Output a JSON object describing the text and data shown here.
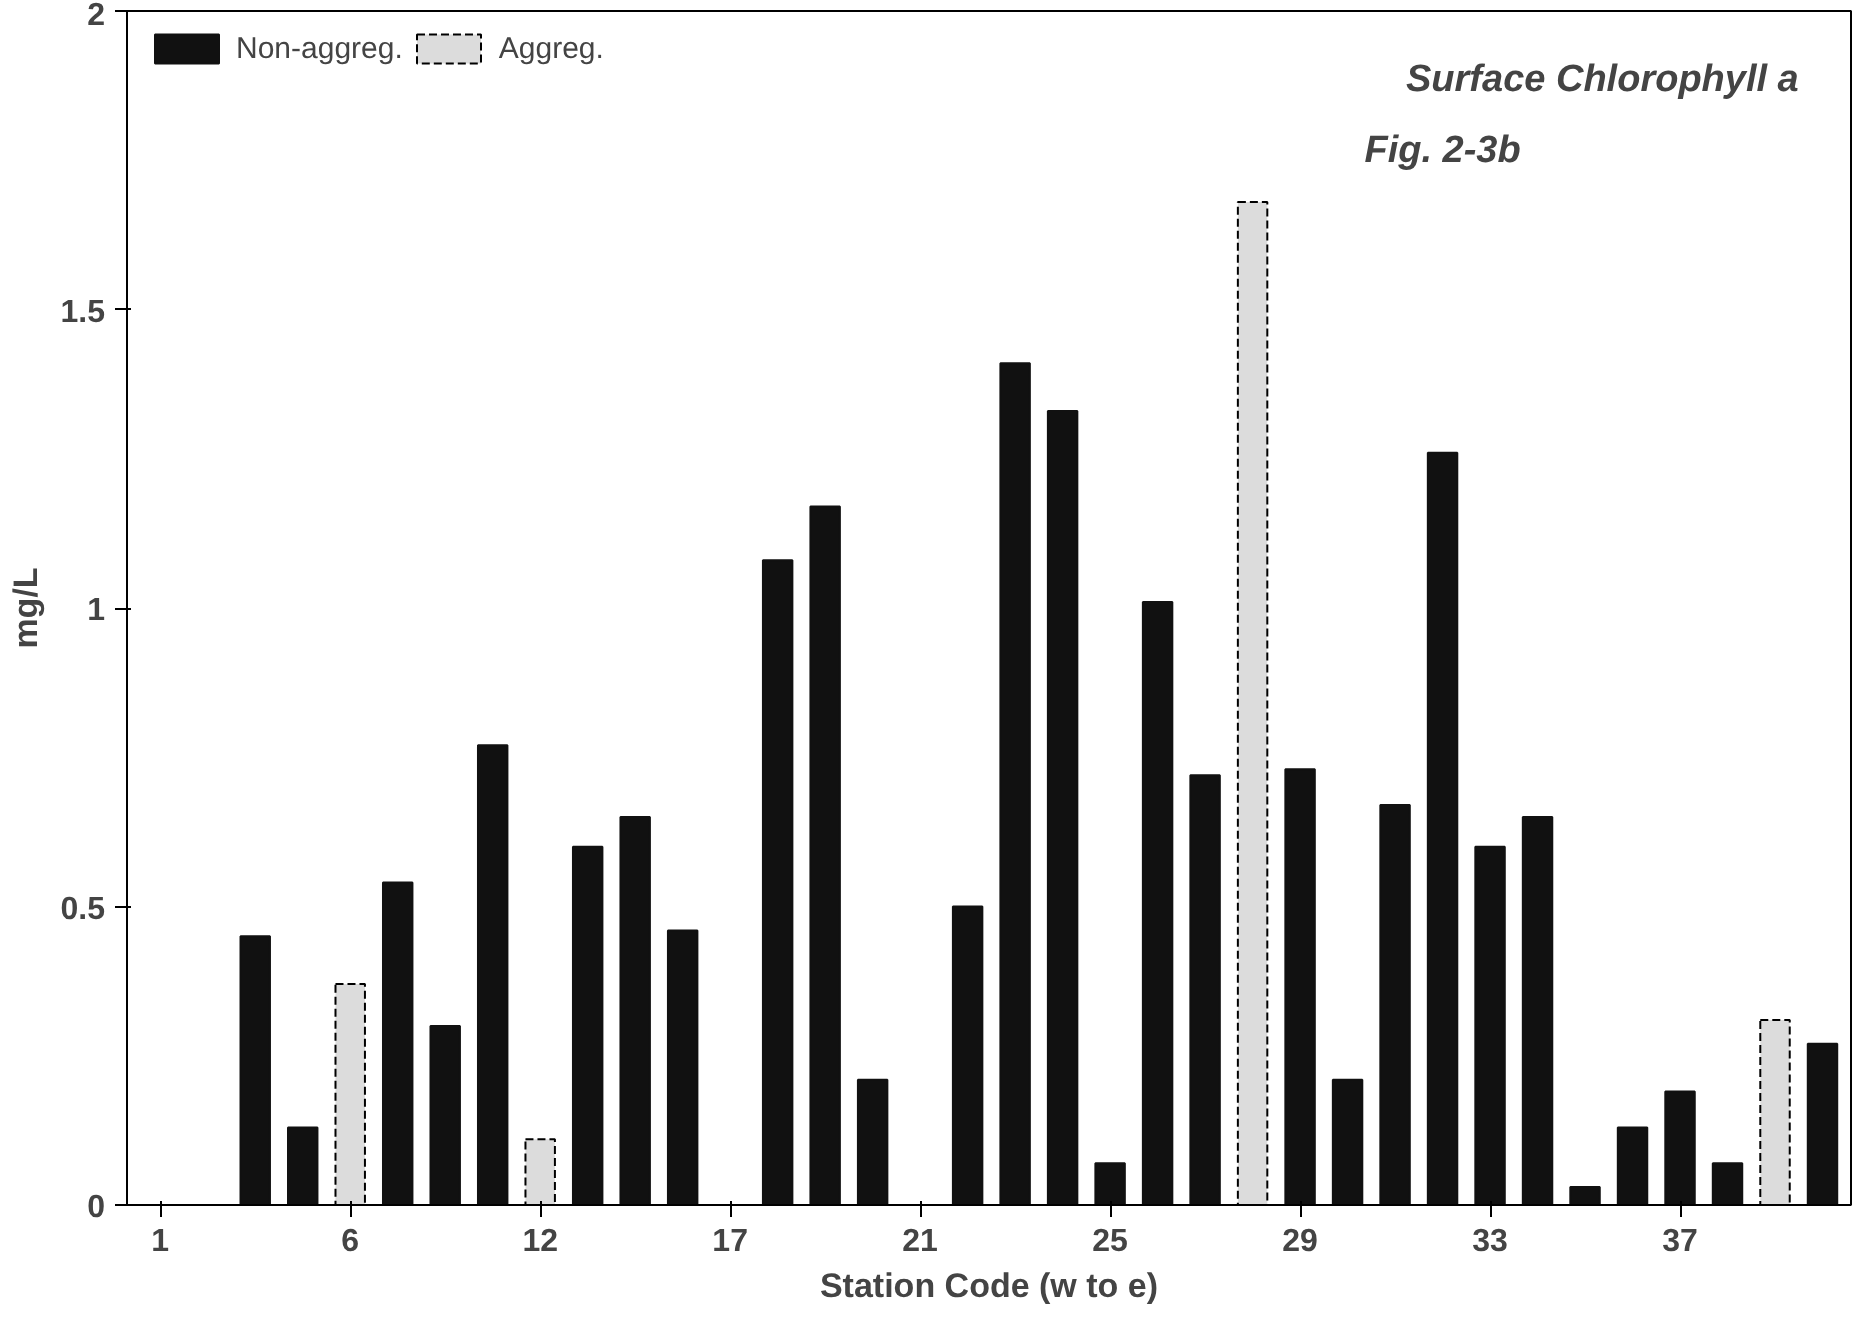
{
  "chart_data": {
    "type": "bar",
    "title": "Surface Chlorophyll a",
    "subtitle": "Fig. 2-3b",
    "xlabel": "Station Code (w to e)",
    "ylabel": "mg/L",
    "categories": [
      "1",
      null,
      null,
      null,
      "6",
      null,
      null,
      null,
      "12",
      null,
      null,
      null,
      "17",
      null,
      null,
      null,
      "21",
      null,
      null,
      null,
      "25",
      null,
      null,
      null,
      "29",
      null,
      null,
      null,
      "33",
      null,
      null,
      null,
      "37",
      null,
      null,
      null
    ],
    "series": [
      {
        "name": "Non-aggreg.",
        "color": "#111111",
        "values": [
          0,
          0,
          0.45,
          0.13,
          null,
          0.54,
          0.3,
          0.77,
          null,
          0.6,
          0.65,
          0.46,
          0,
          1.08,
          1.17,
          0.21,
          0,
          0.5,
          1.41,
          1.33,
          0.07,
          1.01,
          0.72,
          null,
          0.73,
          0.21,
          0.67,
          1.26,
          0.6,
          0.65,
          0.03,
          0.13,
          0.19,
          0.07,
          null,
          0.27
        ]
      },
      {
        "name": "Aggreg.",
        "color": "#dcdcdc",
        "values": [
          null,
          null,
          null,
          null,
          0.37,
          null,
          null,
          null,
          0.11,
          null,
          null,
          null,
          null,
          null,
          null,
          null,
          null,
          null,
          null,
          null,
          null,
          null,
          null,
          1.68,
          null,
          null,
          null,
          null,
          null,
          null,
          null,
          null,
          null,
          null,
          0.31,
          null
        ]
      }
    ],
    "ylim": [
      0,
      2
    ],
    "yticks": [
      0,
      0.5,
      1,
      1.5,
      2
    ],
    "grid": false,
    "legend": "top left"
  }
}
